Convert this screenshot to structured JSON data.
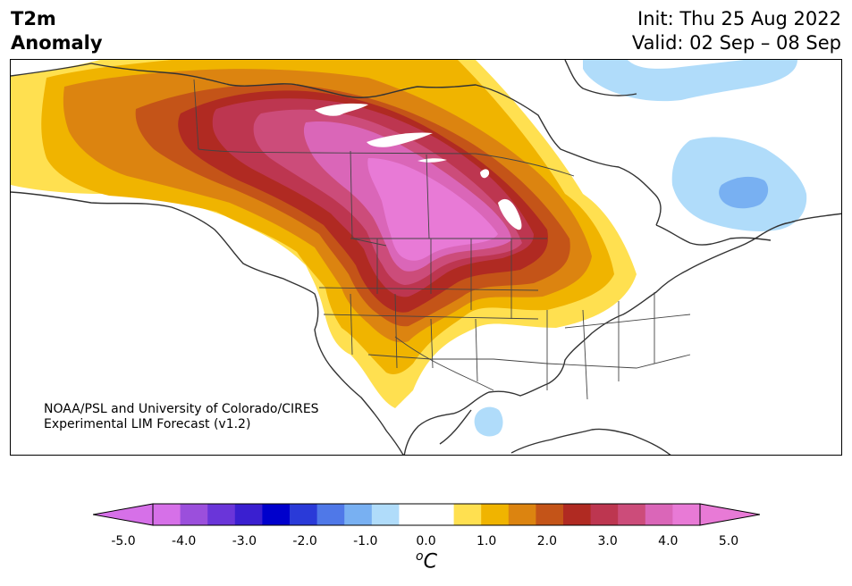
{
  "header": {
    "title_line1": "T2m",
    "title_line2": "Anomaly",
    "init": "Init: Thu 25 Aug 2022",
    "valid": "Valid: 02 Sep – 08 Sep"
  },
  "credit": {
    "line1": "NOAA/PSL and University of Colorado/CIRES",
    "line2": "Experimental LIM Forecast (v1.2)"
  },
  "colorbar": {
    "ticks": [
      "-5.0",
      "-4.0",
      "-3.0",
      "-2.0",
      "-1.0",
      "0.0",
      "1.0",
      "2.0",
      "3.0",
      "4.0",
      "5.0"
    ],
    "unit_base": "C",
    "unit_sup": "o",
    "colors": [
      "#d670e8",
      "#9b4fdc",
      "#6a35d9",
      "#3a1fd0",
      "#0000cc",
      "#2a3ad8",
      "#4f78e8",
      "#78b0f2",
      "#b0dcfa",
      "#ffffff",
      "#ffffff",
      "#ffe050",
      "#f0b400",
      "#dc8410",
      "#c45418",
      "#b02a22",
      "#bd3650",
      "#cc4c7a",
      "#da66b8",
      "#e87ad6"
    ],
    "extend_low": "#d670e8",
    "extend_high": "#e87ad6"
  },
  "map": {
    "region": "North America",
    "variable": "2m temperature anomaly"
  }
}
